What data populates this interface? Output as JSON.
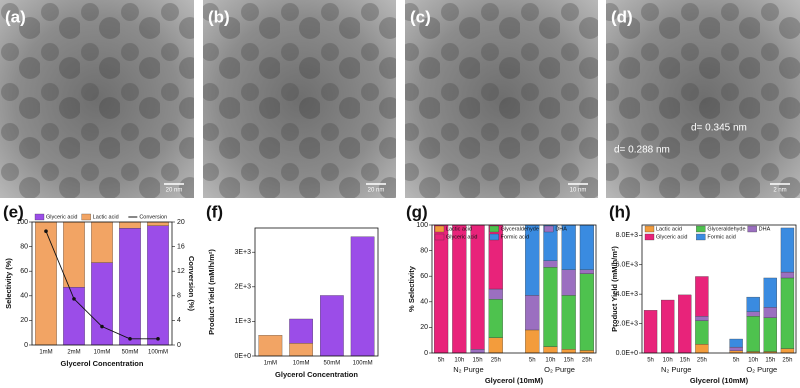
{
  "images": [
    {
      "panel": "(a)",
      "scale": "20 nm"
    },
    {
      "panel": "(b)",
      "scale": "20 nm"
    },
    {
      "panel": "(c)",
      "scale": "10 nm"
    },
    {
      "panel": "(d)",
      "scale": "2 nm",
      "annotations": [
        "d= 0.345 nm",
        "d= 0.288 nm"
      ]
    }
  ],
  "chart_data": [
    {
      "type": "bar",
      "panel": "(e)",
      "x_label": "Glycerol Concentration",
      "y_label": "Selectivity (%)",
      "y2_label": "Conversion (%)",
      "categories": [
        "1mM",
        "2mM",
        "10mM",
        "50mM",
        "100mM"
      ],
      "ylim": [
        0,
        100
      ],
      "yticks": [
        0,
        20,
        40,
        60,
        80,
        100
      ],
      "y2lim": [
        0,
        20
      ],
      "y2ticks": [
        0,
        4,
        8,
        12,
        16,
        20
      ],
      "series": [
        {
          "name": "Glyceric acid",
          "color": "#9b4de8",
          "values": [
            0,
            47,
            67,
            95,
            97
          ]
        },
        {
          "name": "Lactic acid",
          "color": "#f2a464",
          "values": [
            100,
            53,
            33,
            5,
            3
          ]
        },
        {
          "name": "Conversion",
          "color": "#111111",
          "axis": "y2",
          "type": "line",
          "values": [
            18.5,
            7.5,
            3,
            1,
            1
          ]
        }
      ]
    },
    {
      "type": "bar",
      "panel": "(f)",
      "x_label": "Glycerol Concentration",
      "y_label": "Product Yield (mM/h/m²)",
      "categories": [
        "1mM",
        "10mM",
        "50mM",
        "100mM"
      ],
      "ylim": [
        0,
        3700
      ],
      "yticks": [
        {
          "value": 0,
          "label": "0E+0"
        },
        {
          "value": 1000,
          "label": "1E+3"
        },
        {
          "value": 2000,
          "label": "2E+3"
        },
        {
          "value": 3000,
          "label": "3E+3"
        }
      ],
      "series": [
        {
          "color": "#f2a464",
          "values": [
            600,
            370,
            0,
            0
          ]
        },
        {
          "color": "#9b4de8",
          "values": [
            0,
            700,
            1750,
            3450
          ]
        }
      ]
    },
    {
      "type": "bar",
      "panel": "(g)",
      "x_label": "Glycerol (10mM)",
      "y_label": "% Selectivity",
      "categories": [
        "5h",
        "10h",
        "15h",
        "25h",
        "5h",
        "10h",
        "15h",
        "25h"
      ],
      "groups": [
        "N₂ Purge",
        "O₂ Purge"
      ],
      "ylim": [
        0,
        100
      ],
      "yticks": [
        0,
        20,
        40,
        60,
        80,
        100
      ],
      "series": [
        {
          "name": "Lactic acid",
          "color": "#f39c3c",
          "values": [
            0,
            0,
            0,
            12,
            18,
            5,
            3,
            2
          ]
        },
        {
          "name": "Glyceraldehyde",
          "color": "#4ec24e",
          "values": [
            0,
            0,
            0,
            30,
            0,
            62,
            42,
            60
          ]
        },
        {
          "name": "DHA",
          "color": "#9b6fc0",
          "values": [
            0,
            0,
            3,
            8,
            27,
            5,
            20,
            3
          ]
        },
        {
          "name": "Glyceric acid",
          "color": "#e8237a",
          "values": [
            100,
            100,
            97,
            50,
            0,
            0,
            0,
            0
          ]
        },
        {
          "name": "Formic acid",
          "color": "#3a8be0",
          "values": [
            0,
            0,
            0,
            0,
            55,
            28,
            35,
            35
          ]
        }
      ]
    },
    {
      "type": "bar",
      "panel": "(h)",
      "x_label": "Glycerol (10mM)",
      "y_label": "Product Yield (mM/h/m²)",
      "categories": [
        "5h",
        "10h",
        "15h",
        "25h",
        "5h",
        "10h",
        "15h",
        "25h"
      ],
      "groups": [
        "N₂ Purge",
        "O₂ Purge"
      ],
      "ylim": [
        0,
        8700
      ],
      "yticks": [
        {
          "value": 0,
          "label": "0.0E+0"
        },
        {
          "value": 2000,
          "label": "2.0E+3"
        },
        {
          "value": 4000,
          "label": "4.0E+3"
        },
        {
          "value": 6000,
          "label": "6.0E+3"
        },
        {
          "value": 8000,
          "label": "8.0E+3"
        }
      ],
      "series": [
        {
          "name": "Lactic acid",
          "color": "#f39c3c",
          "values": [
            0,
            0,
            0,
            600,
            150,
            100,
            100,
            300
          ]
        },
        {
          "name": "Glyceraldehyde",
          "color": "#4ec24e",
          "values": [
            0,
            0,
            0,
            1600,
            0,
            2400,
            2300,
            4800
          ]
        },
        {
          "name": "DHA",
          "color": "#9b6fc0",
          "values": [
            0,
            0,
            0,
            300,
            250,
            300,
            700,
            400
          ]
        },
        {
          "name": "Glyceric acid",
          "color": "#e8237a",
          "values": [
            2900,
            3600,
            3950,
            2700,
            0,
            0,
            0,
            0
          ]
        },
        {
          "name": "Formic acid",
          "color": "#3a8be0",
          "values": [
            0,
            0,
            0,
            0,
            550,
            1000,
            2000,
            3000
          ]
        }
      ]
    }
  ]
}
